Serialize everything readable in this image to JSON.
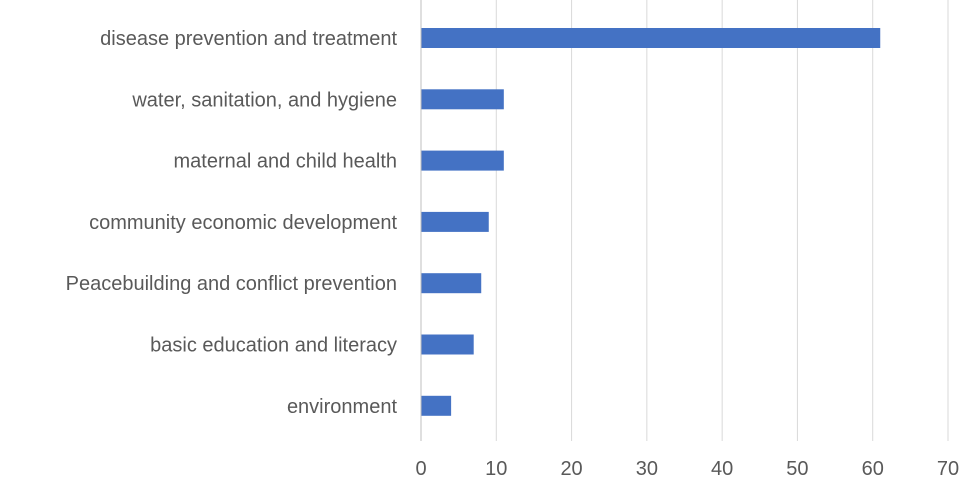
{
  "chart_data": {
    "type": "bar",
    "orientation": "horizontal",
    "categories": [
      "disease prevention and treatment",
      "water, sanitation, and hygiene",
      "maternal and child health",
      "community economic development",
      "Peacebuilding and conflict prevention",
      "basic education and literacy",
      "environment"
    ],
    "values": [
      61,
      11,
      11,
      9,
      8,
      7,
      4
    ],
    "xlim": [
      0,
      70
    ],
    "x_ticks": [
      "0",
      "10",
      "20",
      "30",
      "40",
      "50",
      "60",
      "70"
    ],
    "title": "",
    "xlabel": "",
    "ylabel": "",
    "grid": "vertical",
    "legend": "none",
    "colors": {
      "bar": "#4472C4",
      "grid": "#d9d9d9",
      "axis": "#bfbfbf",
      "label": "#595959"
    }
  }
}
